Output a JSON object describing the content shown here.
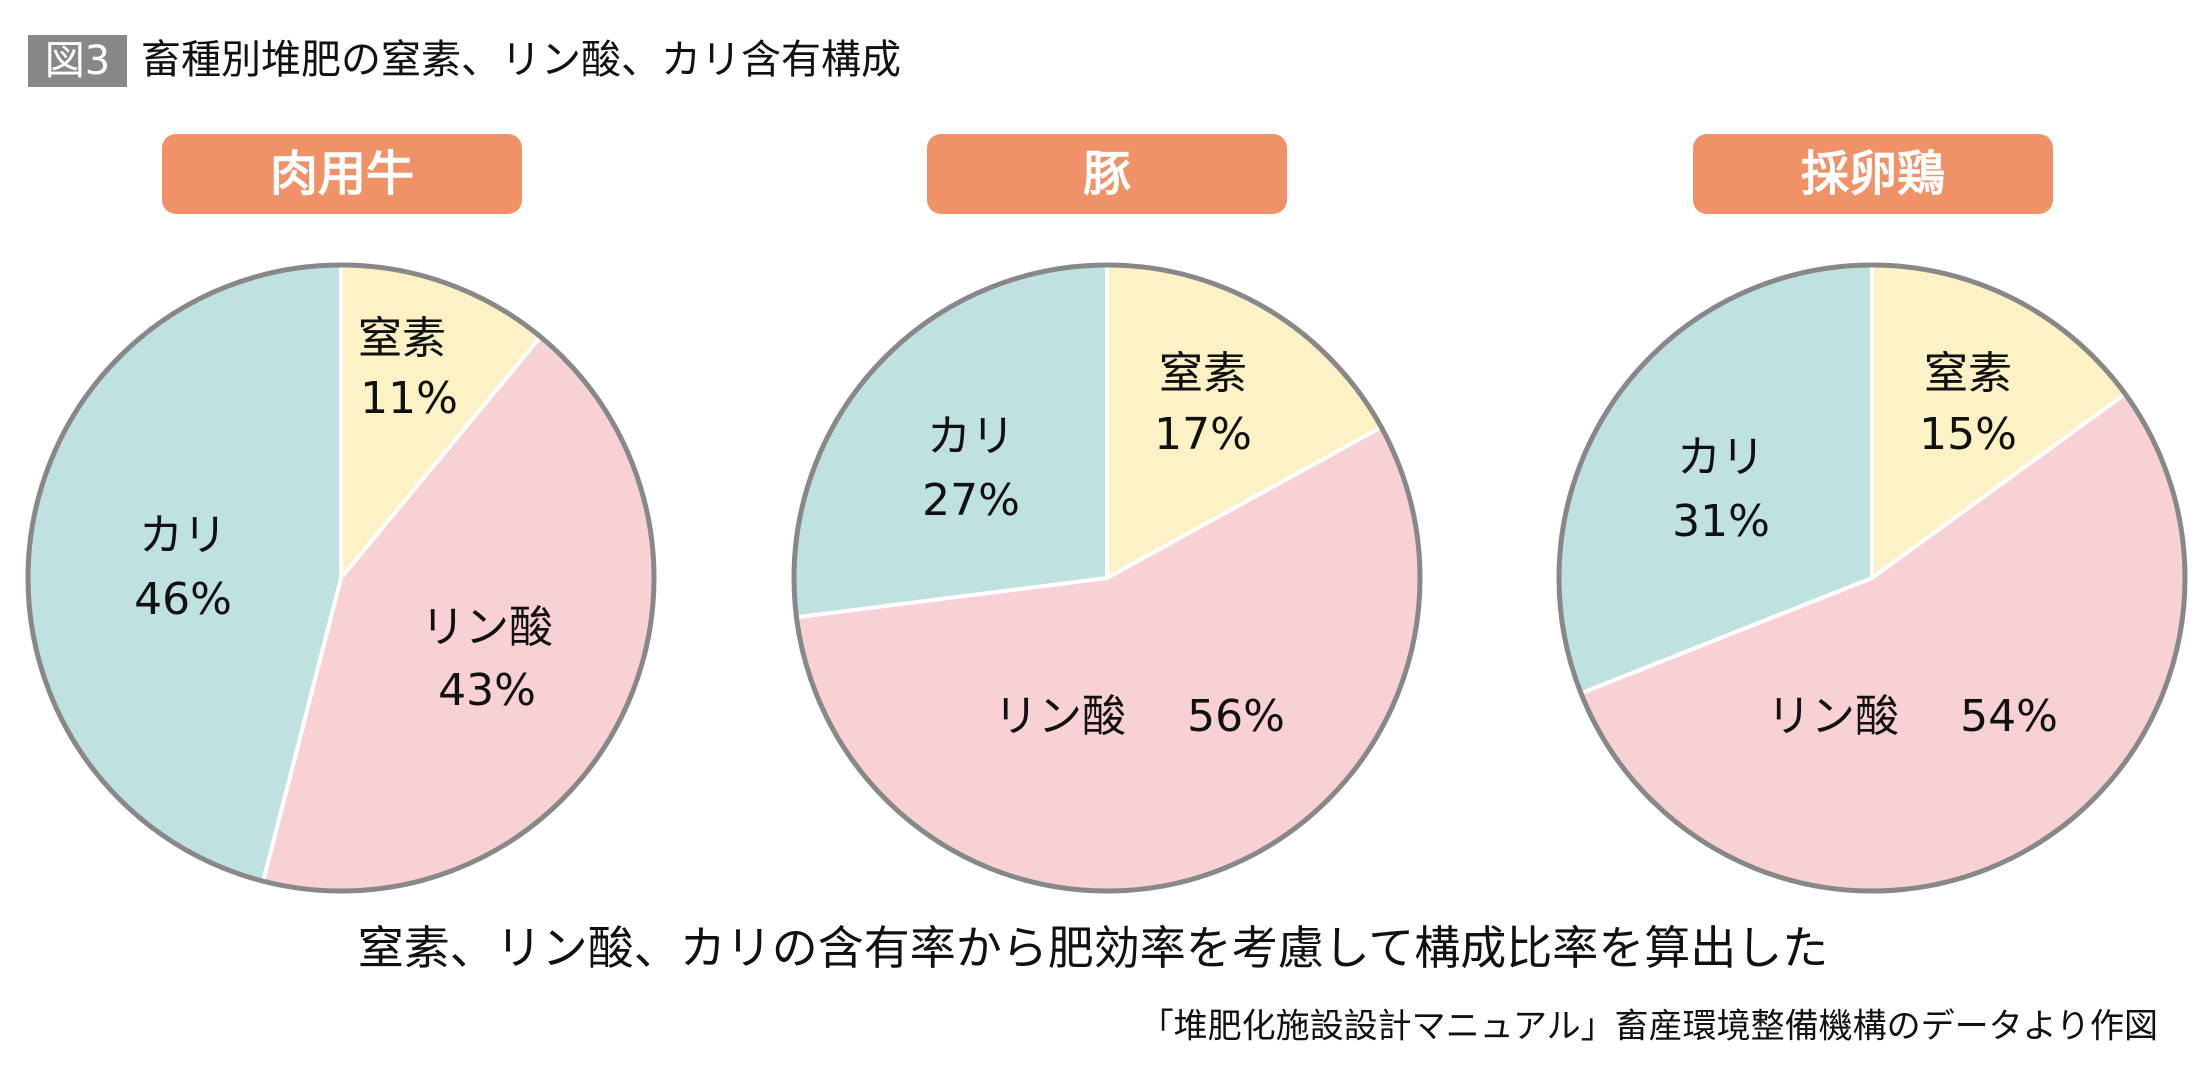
{
  "header": {
    "badge": "図3",
    "title": "畜種別堆肥の窒素、リン酸、カリ含有構成"
  },
  "colors": {
    "nitrogen": "#fdf1c6",
    "phosphate": "#f7d1d3",
    "potash": "#bfe1df",
    "border": "#888888",
    "pill": "#ef9268"
  },
  "chart_data": [
    {
      "type": "pie",
      "title": "肉用牛",
      "start": "top",
      "direction": "clockwise",
      "slices": [
        {
          "label": "窒素",
          "value": 11,
          "text": "11%"
        },
        {
          "label": "リン酸",
          "value": 43,
          "text": "43%"
        },
        {
          "label": "カリ",
          "value": 46,
          "text": "46%"
        }
      ]
    },
    {
      "type": "pie",
      "title": "豚",
      "start": "top",
      "direction": "clockwise",
      "slices": [
        {
          "label": "窒素",
          "value": 17,
          "text": "17%"
        },
        {
          "label": "リン酸",
          "value": 56,
          "text": "56%"
        },
        {
          "label": "カリ",
          "value": 27,
          "text": "27%"
        }
      ]
    },
    {
      "type": "pie",
      "title": "採卵鶏",
      "start": "top",
      "direction": "clockwise",
      "slices": [
        {
          "label": "窒素",
          "value": 15,
          "text": "15%"
        },
        {
          "label": "リン酸",
          "value": 54,
          "text": "54%"
        },
        {
          "label": "カリ",
          "value": 31,
          "text": "31%"
        }
      ]
    }
  ],
  "footer": {
    "note": "窒素、リン酸、カリの含有率から肥効率を考慮して構成比率を算出した",
    "source": "「堆肥化施設設計マニュアル」畜産環境整備機構のデータより作図"
  }
}
